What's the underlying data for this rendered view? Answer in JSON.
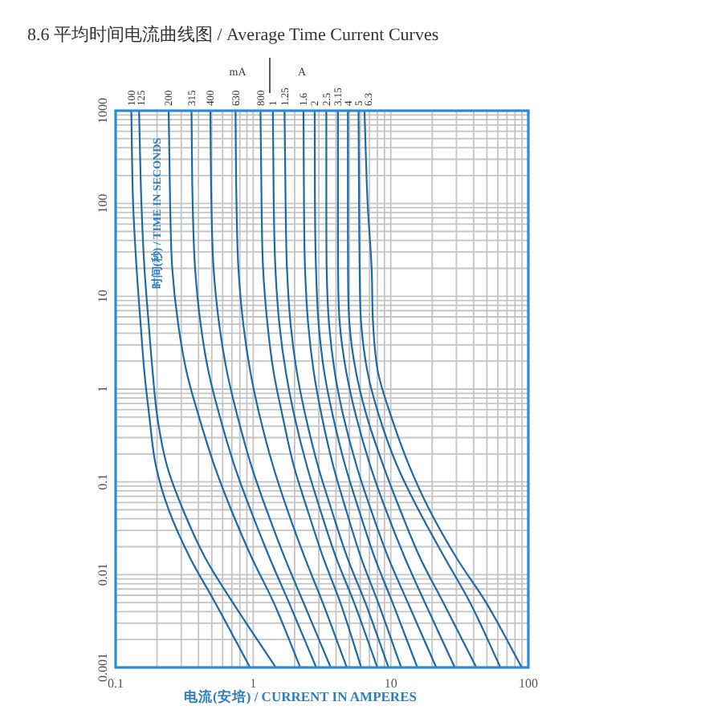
{
  "chart_data": {
    "type": "line",
    "title": "8.6  平均时间电流曲线图 / Average Time Current Curves",
    "xlabel": "电流(安培) / CURRENT IN AMPERES",
    "ylabel": "时间(秒) / TIME IN SECONDS",
    "log": "xy",
    "xlim": [
      0.1,
      100
    ],
    "ylim": [
      0.001,
      1000
    ],
    "xticks": [
      0.1,
      1,
      10,
      100
    ],
    "yticks": [
      0.001,
      0.01,
      0.1,
      1,
      10,
      100,
      1000
    ],
    "grid": true,
    "annotations": [
      "mA",
      "A"
    ],
    "series": [
      {
        "name": "100",
        "color": "#1b6aa5",
        "x": [
          0.13,
          0.134,
          0.142,
          0.152,
          0.162,
          0.176,
          0.196,
          0.243,
          0.349,
          0.529,
          0.948
        ],
        "values": [
          1000,
          100,
          20,
          5,
          1.5,
          0.5,
          0.15,
          0.05,
          0.015,
          0.005,
          0.001
        ]
      },
      {
        "name": "125",
        "color": "#1b6aa5",
        "x": [
          0.148,
          0.154,
          0.162,
          0.174,
          0.186,
          0.201,
          0.236,
          0.309,
          0.45,
          0.711,
          1.46
        ],
        "values": [
          1000,
          100,
          20,
          5,
          1.5,
          0.5,
          0.15,
          0.05,
          0.015,
          0.005,
          0.001
        ]
      },
      {
        "name": "200",
        "color": "#1b6aa5",
        "x": [
          0.243,
          0.249,
          0.258,
          0.285,
          0.329,
          0.404,
          0.522,
          0.692,
          0.981,
          1.41,
          2.2
        ],
        "values": [
          1000,
          100,
          20,
          5,
          1.5,
          0.5,
          0.15,
          0.05,
          0.015,
          0.005,
          0.001
        ]
      },
      {
        "name": "315",
        "color": "#1b6aa5",
        "x": [
          0.356,
          0.363,
          0.378,
          0.415,
          0.475,
          0.573,
          0.73,
          0.956,
          1.32,
          1.82,
          2.87
        ],
        "values": [
          1000,
          100,
          20,
          5,
          1.5,
          0.5,
          0.15,
          0.05,
          0.015,
          0.005,
          0.001
        ]
      },
      {
        "name": "400",
        "color": "#1b6aa5",
        "x": [
          0.488,
          0.497,
          0.515,
          0.566,
          0.647,
          0.771,
          0.968,
          1.25,
          1.7,
          2.32,
          3.66
        ],
        "values": [
          1000,
          100,
          20,
          5,
          1.5,
          0.5,
          0.15,
          0.05,
          0.015,
          0.005,
          0.001
        ]
      },
      {
        "name": "630",
        "color": "#1b6aa5",
        "x": [
          0.744,
          0.756,
          0.781,
          0.847,
          0.956,
          1.12,
          1.39,
          1.77,
          2.38,
          3.2,
          4.79
        ],
        "values": [
          1000,
          100,
          20,
          5,
          1.5,
          0.5,
          0.15,
          0.05,
          0.015,
          0.005,
          0.001
        ]
      },
      {
        "name": "800",
        "color": "#1b6aa5",
        "x": [
          1.13,
          1.15,
          1.18,
          1.27,
          1.41,
          1.64,
          1.97,
          2.48,
          3.24,
          4.3,
          6.1
        ],
        "values": [
          1000,
          100,
          20,
          5,
          1.5,
          0.5,
          0.15,
          0.05,
          0.015,
          0.005,
          0.001
        ]
      },
      {
        "name": "1",
        "color": "#1b6aa5",
        "x": [
          1.39,
          1.41,
          1.45,
          1.55,
          1.73,
          2.0,
          2.45,
          3.07,
          4.02,
          5.41,
          7.98
        ],
        "values": [
          1000,
          100,
          20,
          5,
          1.5,
          0.5,
          0.15,
          0.05,
          0.015,
          0.005,
          0.001
        ]
      },
      {
        "name": "1.25",
        "color": "#1b6aa5",
        "x": [
          1.69,
          1.72,
          1.76,
          1.87,
          2.08,
          2.41,
          2.95,
          3.71,
          4.85,
          6.53,
          9.63
        ],
        "values": [
          1000,
          100,
          20,
          5,
          1.5,
          0.5,
          0.15,
          0.05,
          0.015,
          0.005,
          0.001
        ]
      },
      {
        "name": "1.6",
        "color": "#1b6aa5",
        "x": [
          2.32,
          2.34,
          2.38,
          2.51,
          2.76,
          3.16,
          3.81,
          4.73,
          6.1,
          8.09,
          11.9
        ],
        "values": [
          1000,
          100,
          20,
          5,
          1.5,
          0.5,
          0.15,
          0.05,
          0.015,
          0.005,
          0.001
        ]
      },
      {
        "name": "2",
        "color": "#1b6aa5",
        "x": [
          2.8,
          2.81,
          2.86,
          2.99,
          3.29,
          3.81,
          4.66,
          5.86,
          7.67,
          10.3,
          15.6
        ],
        "values": [
          1000,
          100,
          20,
          5,
          1.5,
          0.5,
          0.15,
          0.05,
          0.015,
          0.005,
          0.001
        ]
      },
      {
        "name": "2.5",
        "color": "#1b6aa5",
        "x": [
          3.4,
          3.4,
          3.42,
          3.56,
          3.92,
          4.54,
          5.63,
          7.17,
          9.63,
          13.3,
          21.4
        ],
        "values": [
          1000,
          100,
          20,
          5,
          1.5,
          0.5,
          0.15,
          0.05,
          0.015,
          0.005,
          0.001
        ]
      },
      {
        "name": "3.15",
        "color": "#1b6aa5",
        "x": [
          4.13,
          4.13,
          4.14,
          4.26,
          4.76,
          5.61,
          7.09,
          9.2,
          12.7,
          17.7,
          29.2
        ],
        "values": [
          1000,
          100,
          20,
          5,
          1.5,
          0.5,
          0.15,
          0.05,
          0.015,
          0.005,
          0.001
        ]
      },
      {
        "name": "4",
        "color": "#1b6aa5",
        "x": [
          4.88,
          4.88,
          4.89,
          5.01,
          5.6,
          6.72,
          8.82,
          11.7,
          16.4,
          24.1,
          41.9
        ],
        "values": [
          1000,
          100,
          20,
          5,
          1.5,
          0.5,
          0.15,
          0.05,
          0.015,
          0.005,
          0.001
        ]
      },
      {
        "name": "5",
        "color": "#1b6aa5",
        "x": [
          5.83,
          5.88,
          5.94,
          6.1,
          6.79,
          8.27,
          11.1,
          15.9,
          24.8,
          37.7,
          62.7
        ],
        "values": [
          1000,
          100,
          20,
          5,
          1.5,
          0.5,
          0.15,
          0.05,
          0.015,
          0.005,
          0.001
        ]
      },
      {
        "name": "6.3",
        "color": "#1b6aa5",
        "x": [
          6.44,
          6.79,
          7.26,
          7.44,
          8.09,
          10.1,
          13.6,
          19.1,
          30.2,
          49.3,
          89.6
        ],
        "values": [
          1000,
          100,
          20,
          5,
          1.5,
          0.5,
          0.15,
          0.05,
          0.015,
          0.005,
          0.001
        ]
      }
    ]
  }
}
